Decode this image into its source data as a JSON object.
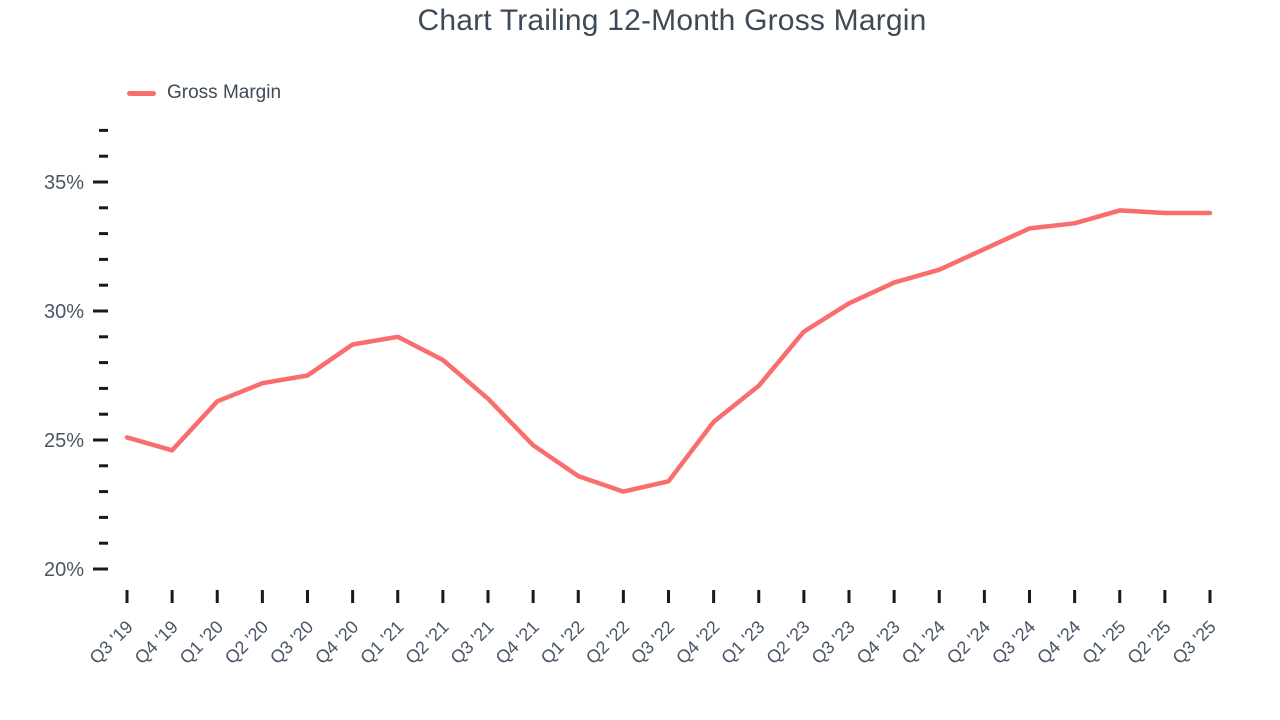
{
  "chart_data": {
    "type": "line",
    "title": "Chart Trailing 12-Month Gross Margin",
    "legend": [
      {
        "name": "Gross Margin",
        "color": "#f96d6d"
      }
    ],
    "legend_position": "top-left",
    "grid": false,
    "x": [
      "Q3 '19",
      "Q4 '19",
      "Q1 '20",
      "Q2 '20",
      "Q3 '20",
      "Q4 '20",
      "Q1 '21",
      "Q2 '21",
      "Q3 '21",
      "Q4 '21",
      "Q1 '22",
      "Q2 '22",
      "Q3 '22",
      "Q4 '22",
      "Q1 '23",
      "Q2 '23",
      "Q3 '23",
      "Q4 '23",
      "Q1 '24",
      "Q2 '24",
      "Q3 '24",
      "Q4 '24",
      "Q1 '25",
      "Q2 '25",
      "Q3 '25"
    ],
    "series": [
      {
        "name": "Gross Margin",
        "unit": "%",
        "values": [
          25.1,
          24.6,
          26.5,
          27.2,
          27.5,
          28.7,
          29.0,
          28.1,
          26.6,
          24.8,
          23.6,
          23.0,
          23.4,
          25.7,
          27.1,
          29.2,
          30.3,
          31.1,
          31.6,
          32.4,
          33.2,
          33.4,
          33.9,
          33.8,
          33.8
        ]
      }
    ],
    "y_axis": {
      "min": 20,
      "max": 37,
      "minor_step": 1,
      "labeled_ticks": [
        {
          "value": 20,
          "label": "20%"
        },
        {
          "value": 25,
          "label": "25%"
        },
        {
          "value": 30,
          "label": "30%"
        },
        {
          "value": 35,
          "label": "35%"
        }
      ]
    }
  },
  "colors": {
    "accent_line": "#f96d6d",
    "title_text": "#3d4a57",
    "axis_label_text": "#4a5568",
    "tick_mark": "#161b22",
    "background": "#ffffff"
  }
}
